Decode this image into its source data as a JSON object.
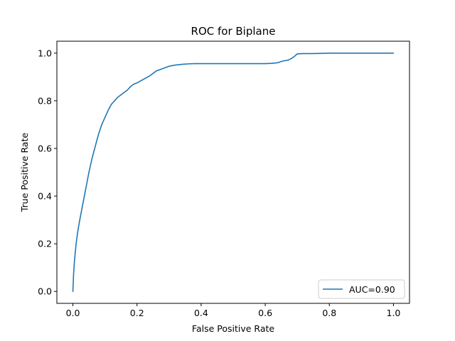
{
  "chart_data": {
    "type": "line",
    "title": "ROC for Biplane",
    "xlabel": "False Positive Rate",
    "ylabel": "True Positive Rate",
    "xlim": [
      -0.05,
      1.05
    ],
    "ylim": [
      -0.05,
      1.05
    ],
    "xticks": [
      "0.0",
      "0.2",
      "0.4",
      "0.6",
      "0.8",
      "1.0"
    ],
    "yticks": [
      "0.0",
      "0.2",
      "0.4",
      "0.6",
      "0.8",
      "1.0"
    ],
    "grid": false,
    "legend_position": "lower-right",
    "series": [
      {
        "name": "AUC=0.90",
        "color": "#1f77b4",
        "x": [
          0.0,
          0.002,
          0.005,
          0.01,
          0.015,
          0.02,
          0.03,
          0.04,
          0.05,
          0.06,
          0.07,
          0.08,
          0.09,
          0.1,
          0.11,
          0.12,
          0.13,
          0.14,
          0.15,
          0.16,
          0.17,
          0.18,
          0.19,
          0.2,
          0.22,
          0.24,
          0.26,
          0.28,
          0.3,
          0.32,
          0.34,
          0.36,
          0.38,
          0.4,
          0.45,
          0.5,
          0.55,
          0.6,
          0.62,
          0.64,
          0.65,
          0.66,
          0.67,
          0.68,
          0.69,
          0.7,
          0.72,
          0.75,
          0.8,
          0.85,
          0.9,
          0.95,
          1.0
        ],
        "y": [
          0.0,
          0.07,
          0.13,
          0.2,
          0.25,
          0.29,
          0.36,
          0.43,
          0.5,
          0.56,
          0.61,
          0.66,
          0.7,
          0.73,
          0.76,
          0.785,
          0.8,
          0.815,
          0.825,
          0.835,
          0.845,
          0.86,
          0.87,
          0.875,
          0.89,
          0.905,
          0.925,
          0.935,
          0.945,
          0.95,
          0.953,
          0.955,
          0.956,
          0.956,
          0.956,
          0.956,
          0.956,
          0.956,
          0.957,
          0.96,
          0.965,
          0.968,
          0.97,
          0.976,
          0.985,
          0.997,
          0.998,
          0.998,
          1.0,
          1.0,
          1.0,
          1.0,
          1.0
        ]
      }
    ]
  }
}
